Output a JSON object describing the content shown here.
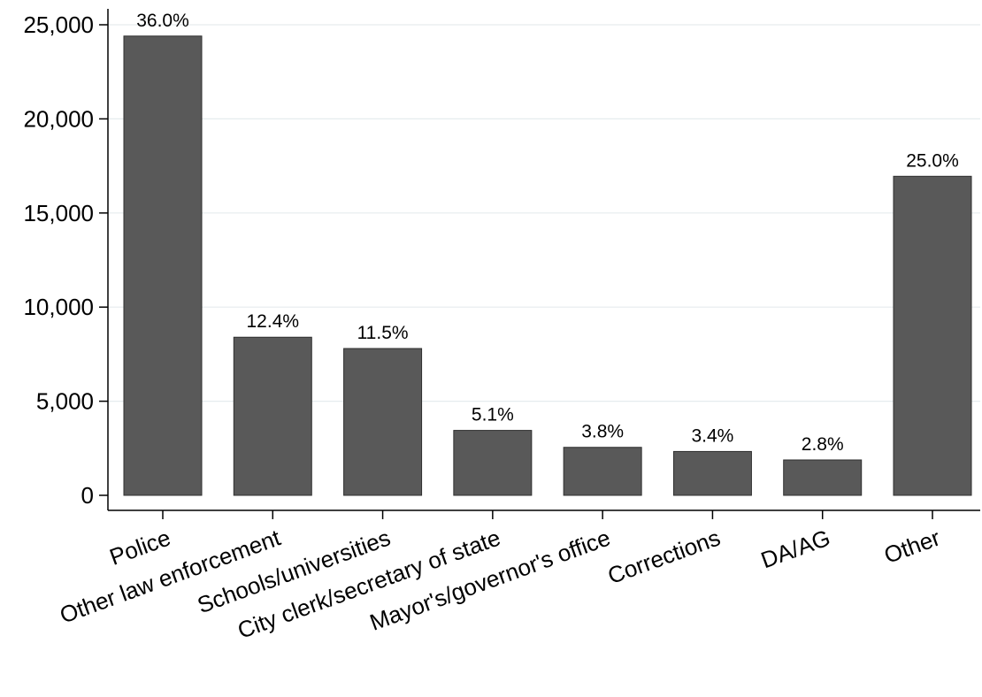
{
  "chart_data": {
    "type": "bar",
    "categories": [
      "Police",
      "Other law enforcement",
      "Schools/universities",
      "City clerk/secretary of state",
      "Mayor's/governor's office",
      "Corrections",
      "DA/AG",
      "Other"
    ],
    "values": [
      24400,
      8400,
      7800,
      3450,
      2550,
      2330,
      1880,
      16950
    ],
    "data_labels": [
      "36.0%",
      "12.4%",
      "11.5%",
      "5.1%",
      "3.8%",
      "3.4%",
      "2.8%",
      "25.0%"
    ],
    "yticks": [
      0,
      5000,
      10000,
      15000,
      20000,
      25000
    ],
    "ytick_labels": [
      "0",
      "5,000",
      "10,000",
      "15,000",
      "20,000",
      "25,000"
    ],
    "ylim": [
      0,
      25800
    ],
    "grid": true,
    "legend": "none",
    "bar_color": "#595959",
    "title": "",
    "xlabel": "",
    "ylabel": ""
  }
}
